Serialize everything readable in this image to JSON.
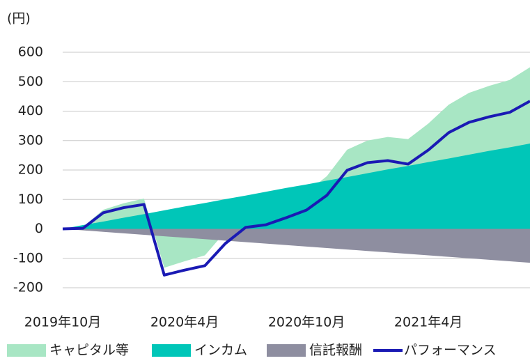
{
  "chart_data": {
    "type": "area",
    "y_unit": "(円)",
    "categories": [
      "2019年10月",
      null,
      null,
      null,
      null,
      null,
      "2020年4月",
      null,
      null,
      null,
      null,
      null,
      "2020年10月",
      null,
      null,
      null,
      null,
      null,
      "2021年4月",
      null,
      null,
      null,
      null,
      null
    ],
    "ylim": [
      -200,
      600
    ],
    "yticks": [
      -200,
      -100,
      0,
      100,
      200,
      300,
      400,
      500,
      600
    ],
    "grid": true,
    "series": [
      {
        "name": "キャピタル等",
        "color": "#a8e6c4",
        "kind": "area",
        "values": [
          0,
          -6,
          40,
          49,
          53,
          -195,
          -186,
          -178,
          -111,
          -63,
          -62,
          -46,
          -27,
          15,
          93,
          111,
          110,
          91,
          131,
          183,
          210,
          221,
          229,
          259
        ]
      },
      {
        "name": "インカム",
        "color": "#00c6b8",
        "kind": "area",
        "values": [
          0,
          13,
          25,
          38,
          50,
          63,
          76,
          88,
          101,
          113,
          126,
          139,
          151,
          164,
          176,
          189,
          202,
          214,
          227,
          239,
          252,
          265,
          277,
          290
        ]
      },
      {
        "name": "信託報酬",
        "color": "#8e8ea0",
        "kind": "area",
        "values": [
          0,
          -5,
          -10,
          -15,
          -20,
          -25,
          -30,
          -35,
          -40,
          -45,
          -50,
          -55,
          -60,
          -65,
          -70,
          -75,
          -80,
          -85,
          -90,
          -95,
          -100,
          -105,
          -110,
          -115
        ]
      },
      {
        "name": "パフォーマンス",
        "color": "#1a1ab4",
        "kind": "line",
        "values": [
          0,
          2,
          55,
          72,
          83,
          -157,
          -140,
          -125,
          -50,
          5,
          14,
          38,
          64,
          114,
          199,
          225,
          232,
          220,
          268,
          327,
          362,
          381,
          396,
          434
        ]
      }
    ]
  }
}
